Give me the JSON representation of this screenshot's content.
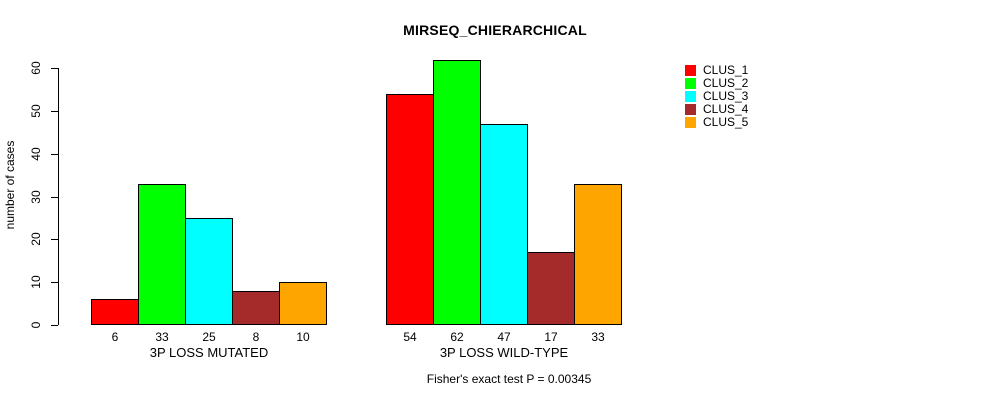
{
  "title": "MIRSEQ_CHIERARCHICAL",
  "footer": "Fisher's exact test P = 0.00345",
  "chart_data": {
    "type": "bar",
    "title": "MIRSEQ_CHIERARCHICAL",
    "xlabel": "",
    "ylabel": "number of cases",
    "ylim": [
      0,
      62
    ],
    "yticks": [
      0,
      10,
      20,
      30,
      40,
      50,
      60
    ],
    "grid": false,
    "legend_position": "right",
    "categories": [
      "3P LOSS MUTATED",
      "3P LOSS WILD-TYPE"
    ],
    "series": [
      {
        "name": "CLUS_1",
        "color": "#FF0000",
        "values": [
          6,
          54
        ]
      },
      {
        "name": "CLUS_2",
        "color": "#00FF00",
        "values": [
          33,
          62
        ]
      },
      {
        "name": "CLUS_3",
        "color": "#00FFFF",
        "values": [
          25,
          47
        ]
      },
      {
        "name": "CLUS_4",
        "color": "#A52A2A",
        "values": [
          8,
          17
        ]
      },
      {
        "name": "CLUS_5",
        "color": "#FFA500",
        "values": [
          10,
          33
        ]
      }
    ],
    "bar_value_labels": [
      [
        6,
        33,
        25,
        8,
        10
      ],
      [
        54,
        62,
        47,
        17,
        33
      ]
    ],
    "annotation": "Fisher's exact test P = 0.00345"
  }
}
